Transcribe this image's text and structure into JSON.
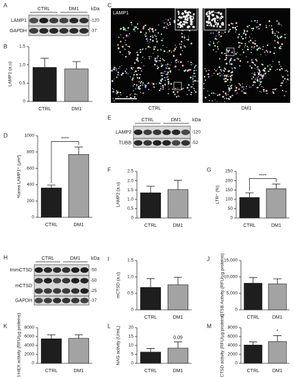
{
  "chart_data": [
    {
      "type": "bar",
      "panel": "B",
      "ylabel": "LAMP1 (a.u)",
      "categories": [
        "CTRL",
        "DM1"
      ],
      "values": [
        0.93,
        0.89
      ],
      "errors": [
        0.25,
        0.2
      ],
      "colors": [
        "#1e1e1e",
        "#a3a3a3"
      ],
      "ylim": [
        0,
        1.5
      ],
      "yticks": [
        0,
        0.5,
        {
          "value": 1,
          "label": "1.0"
        },
        1.5
      ]
    },
    {
      "type": "bar",
      "panel": "D",
      "ylabel": "%area LAMP1⁺ (µm²)",
      "categories": [
        "CTRL",
        "DM1"
      ],
      "values": [
        360,
        770
      ],
      "errors": [
        35,
        90
      ],
      "colors": [
        "#1e1e1e",
        "#a3a3a3"
      ],
      "ylim": [
        0,
        1000
      ],
      "yticks": [
        0,
        200,
        400,
        600,
        800,
        1000
      ],
      "annotation": "****",
      "bracket": true
    },
    {
      "type": "bar",
      "panel": "F",
      "ylabel": "LAMP2 (a.u)",
      "categories": [
        "CTRL",
        "DM1"
      ],
      "values": [
        1.35,
        1.52
      ],
      "errors": [
        0.35,
        0.5
      ],
      "colors": [
        "#1e1e1e",
        "#a3a3a3"
      ],
      "ylim": [
        0,
        2.5
      ],
      "yticks": [
        0,
        0.5,
        {
          "value": 1,
          "label": "1.0"
        },
        1.5,
        {
          "value": 2,
          "label": "2.0"
        },
        2.5
      ]
    },
    {
      "type": "bar",
      "panel": "G",
      "ylabel": "LTR⁺ (%)",
      "categories": [
        "CTRL",
        "DM1"
      ],
      "values": [
        110,
        157
      ],
      "errors": [
        25,
        25
      ],
      "colors": [
        "#1e1e1e",
        "#a3a3a3"
      ],
      "ylim": [
        0,
        250
      ],
      "yticks": [
        0,
        50,
        100,
        150,
        200,
        250
      ],
      "annotation": "****",
      "bracket": true
    },
    {
      "type": "bar",
      "panel": "I",
      "ylabel": "mCTSD (a.u)",
      "categories": [
        "CTRL",
        "DM1"
      ],
      "values": [
        0.68,
        0.76
      ],
      "errors": [
        0.27,
        0.23
      ],
      "colors": [
        "#1e1e1e",
        "#a3a3a3"
      ],
      "ylim": [
        0,
        1.5
      ],
      "yticks": [
        0,
        0.5,
        {
          "value": 1,
          "label": "1.0"
        },
        1.5
      ]
    },
    {
      "type": "bar",
      "panel": "J",
      "ylabel": "CTSB Activity (RFU/µg proteins)",
      "categories": [
        "CTRL",
        "DM1"
      ],
      "values": [
        8100,
        7900
      ],
      "errors": [
        1700,
        1500
      ],
      "colors": [
        "#1e1e1e",
        "#a3a3a3"
      ],
      "ylim": [
        0,
        15000
      ],
      "yticks": [
        0,
        {
          "value": 5000,
          "label": "5,000"
        },
        {
          "value": 10000,
          "label": "10,000"
        },
        {
          "value": 15000,
          "label": "15,000"
        }
      ]
    },
    {
      "type": "bar",
      "panel": "K",
      "ylabel": "ß-HEX activity (RFU/µg proteins)",
      "categories": [
        "CTRL",
        "DM1"
      ],
      "values": [
        5500,
        5600
      ],
      "errors": [
        900,
        800
      ],
      "colors": [
        "#1e1e1e",
        "#a3a3a3"
      ],
      "ylim": [
        0,
        8000
      ],
      "yticks": [
        0,
        2000,
        4000,
        6000,
        8000
      ]
    },
    {
      "type": "bar",
      "panel": "L",
      "ylabel": "NAG activity (U/mL)",
      "categories": [
        "CTRL",
        "DM1"
      ],
      "values": [
        6.3,
        8.5
      ],
      "errors": [
        2,
        3.5
      ],
      "colors": [
        "#1e1e1e",
        "#a3a3a3"
      ],
      "ylim": [
        0,
        20
      ],
      "yticks": [
        0,
        5,
        10,
        15,
        20
      ],
      "annotation": "0.09",
      "bracket": false
    },
    {
      "type": "bar",
      "panel": "M",
      "ylabel": "CTSD activity (RFU/µg proteins)",
      "categories": [
        "CTRL",
        "DM1"
      ],
      "values": [
        4100,
        4900
      ],
      "errors": [
        700,
        1300
      ],
      "colors": [
        "#1e1e1e",
        "#a3a3a3"
      ],
      "ylim": [
        0,
        8000
      ],
      "yticks": [
        0,
        2000,
        4000,
        6000,
        8000
      ],
      "annotation": "*",
      "bracket": false
    }
  ],
  "blots": [
    {
      "panel": "A",
      "groups": [
        "CTRL",
        "DM1"
      ],
      "unit": "kDa",
      "rows": [
        {
          "label": "LAMP1",
          "markers": [
            "-120"
          ]
        },
        {
          "label": "GAPDH",
          "markers": [
            "-37"
          ]
        }
      ]
    },
    {
      "panel": "E",
      "groups": [
        "CTRL",
        "DM1"
      ],
      "unit": "kDa",
      "rows": [
        {
          "label": "LAMP2",
          "markers": [
            "-120"
          ]
        },
        {
          "label": "TUBB",
          "markers": [
            "-52"
          ]
        }
      ]
    },
    {
      "panel": "H",
      "groups": [
        "CTRL",
        "DM1"
      ],
      "unit": "kDa",
      "rows": [
        {
          "label": "ImmCTSD",
          "markers": [
            "-50"
          ]
        },
        {
          "label": "mCTSD",
          "markers": [
            "-50",
            "-25"
          ]
        },
        {
          "label": "GAPDH",
          "markers": [
            "-37"
          ]
        }
      ]
    }
  ],
  "micrograph": {
    "panel": "C",
    "stain": "LAMP1",
    "conditions": [
      "CTRL",
      "DM1"
    ]
  }
}
